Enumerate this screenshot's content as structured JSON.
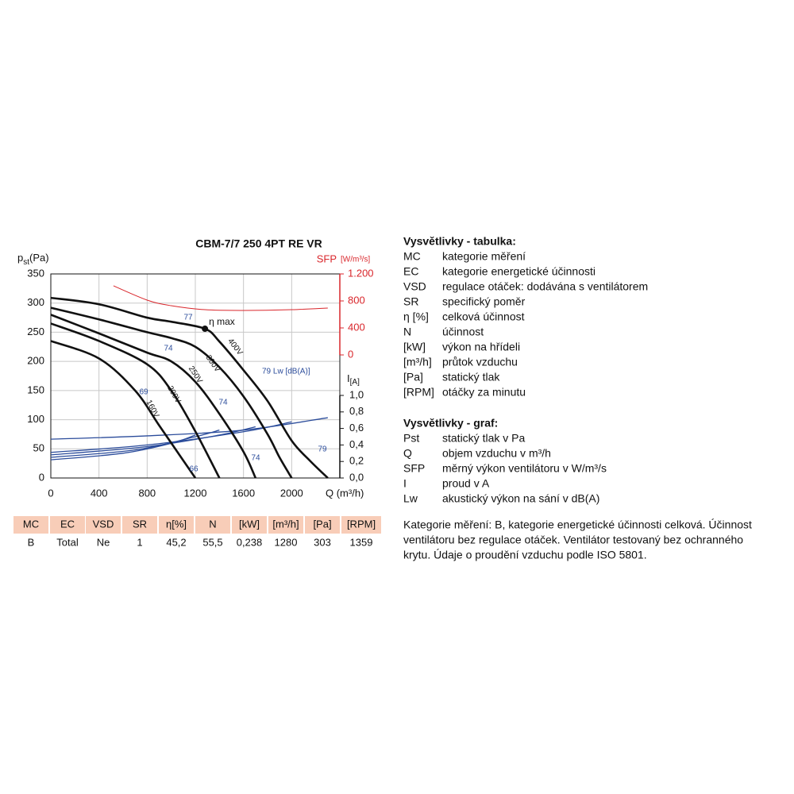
{
  "chart_data": {
    "type": "line",
    "title": "CBM-7/7 250 4PT RE VR",
    "x_label": "Q (m³/h)",
    "y_label": {
      "main": "p",
      "sub": "st",
      "unit": "(Pa)"
    },
    "xlim": [
      0,
      2400
    ],
    "xticks": [
      0,
      400,
      800,
      1200,
      1600,
      2000
    ],
    "ylim": [
      0,
      350
    ],
    "yticks": [
      0,
      50,
      100,
      150,
      200,
      250,
      300,
      350
    ],
    "grid": true,
    "series": [
      {
        "name": "400V",
        "color": "#111111",
        "x": [
          0,
          400,
          800,
          1000,
          1280,
          1400,
          1600,
          1800,
          2000,
          2150,
          2300
        ],
        "values": [
          309,
          298,
          275,
          268,
          256,
          234,
          185,
          132,
          64,
          30,
          0
        ]
      },
      {
        "name": "300V",
        "color": "#111111",
        "x": [
          0,
          400,
          800,
          1000,
          1200,
          1400,
          1600,
          1800,
          1900,
          2000
        ],
        "values": [
          292,
          272,
          250,
          240,
          225,
          190,
          140,
          75,
          35,
          0
        ]
      },
      {
        "name": "250V",
        "color": "#111111",
        "x": [
          0,
          400,
          800,
          1000,
          1200,
          1400,
          1600,
          1700
        ],
        "values": [
          280,
          248,
          215,
          200,
          165,
          110,
          45,
          0
        ]
      },
      {
        "name": "200V",
        "color": "#111111",
        "x": [
          0,
          400,
          800,
          1000,
          1200,
          1400
        ],
        "values": [
          265,
          235,
          195,
          150,
          80,
          0
        ]
      },
      {
        "name": "160V",
        "color": "#111111",
        "x": [
          0,
          400,
          700,
          900,
          1100,
          1200
        ],
        "values": [
          235,
          205,
          150,
          90,
          30,
          0
        ]
      }
    ],
    "sfp_axis": {
      "label": "SFP",
      "unit": "[W/m³/s]",
      "color": "#d9262b",
      "ylim": [
        0,
        1200
      ],
      "yticks": [
        0,
        400,
        800,
        {
          "value": 1200,
          "label": "1.200"
        }
      ]
    },
    "sfp_series": {
      "color": "#d9262b",
      "x": [
        520,
        800,
        1000,
        1280,
        1600,
        2000,
        2300
      ],
      "values": [
        1024,
        812,
        729,
        670,
        659,
        670,
        694
      ]
    },
    "current_axis": {
      "label": "I",
      "unit": "[A]",
      "ylim": [
        0,
        1.0
      ],
      "yticks": [
        {
          "value": 0,
          "label": "0,0"
        },
        {
          "value": 0.2,
          "label": "0,2"
        },
        {
          "value": 0.4,
          "label": "0,4"
        },
        {
          "value": 0.6,
          "label": "0,6"
        },
        {
          "value": 0.8,
          "label": "0,8"
        },
        {
          "value": 1.0,
          "label": "1,0"
        }
      ]
    },
    "current_series": [
      {
        "color": "#2b4c9b",
        "x": [
          0,
          800,
          1600,
          2300
        ],
        "values": [
          0.47,
          0.51,
          0.58,
          0.73
        ]
      },
      {
        "color": "#2b4c9b",
        "x": [
          0,
          800,
          1600,
          2000
        ],
        "values": [
          0.31,
          0.4,
          0.56,
          0.68
        ]
      },
      {
        "color": "#2b4c9b",
        "x": [
          0,
          800,
          1400,
          1700
        ],
        "values": [
          0.28,
          0.38,
          0.52,
          0.62
        ]
      },
      {
        "color": "#2b4c9b",
        "x": [
          0,
          700,
          1200,
          1400
        ],
        "values": [
          0.25,
          0.34,
          0.5,
          0.58
        ]
      },
      {
        "color": "#2b4c9b",
        "x": [
          0,
          600,
          1000,
          1200
        ],
        "values": [
          0.22,
          0.3,
          0.42,
          0.52
        ]
      }
    ],
    "eta_max": {
      "label": "η max",
      "x": 1280,
      "value": 256
    },
    "annotations": [
      "77",
      "74",
      "69",
      "74",
      "74",
      "66",
      "79",
      "79 Lw [dB(A)]"
    ]
  },
  "table": {
    "header": [
      "MC",
      "EC",
      "VSD",
      "SR",
      "η[%]",
      "N",
      "[kW]",
      "[m³/h]",
      "[Pa]",
      "[RPM]"
    ],
    "rows": [
      [
        "B",
        "Total",
        "Ne",
        "1",
        "45,2",
        "55,5",
        "0,238",
        "1280",
        "303",
        "1359"
      ]
    ]
  },
  "legend_table": {
    "title": "Vysvětlivky - tabulka:",
    "items": [
      [
        "MC",
        "kategorie měření"
      ],
      [
        "EC",
        "kategorie energetické účinnosti"
      ],
      [
        "VSD",
        "regulace otáček: dodávána s ventilátorem"
      ],
      [
        "SR",
        "specifický poměr"
      ],
      [
        "η [%]",
        "celková účinnost"
      ],
      [
        "N",
        "účinnost"
      ],
      [
        "[kW]",
        "výkon na hřídeli"
      ],
      [
        "[m³/h]",
        "průtok vzduchu"
      ],
      [
        "[Pa]",
        "statický tlak"
      ],
      [
        "[RPM]",
        "otáčky za minutu"
      ]
    ]
  },
  "legend_graph": {
    "title": "Vysvětlivky - graf:",
    "items": [
      [
        "Pst",
        "statický tlak v Pa"
      ],
      [
        "Q",
        "objem vzduchu v m³/h"
      ],
      [
        "SFP",
        "měrný výkon ventilátoru v W/m³/s"
      ],
      [
        "I",
        "proud v A"
      ],
      [
        "Lw",
        "akustický výkon na sání v dB(A)"
      ]
    ]
  },
  "note": [
    "Kategorie měření: B, kategorie energetické účinnosti celková. Účinnost",
    "ventilátoru bez regulace otáček. Ventilátor testovaný bez ochranného",
    "krytu. Údaje o proudění vzduchu podle ISO 5801."
  ]
}
